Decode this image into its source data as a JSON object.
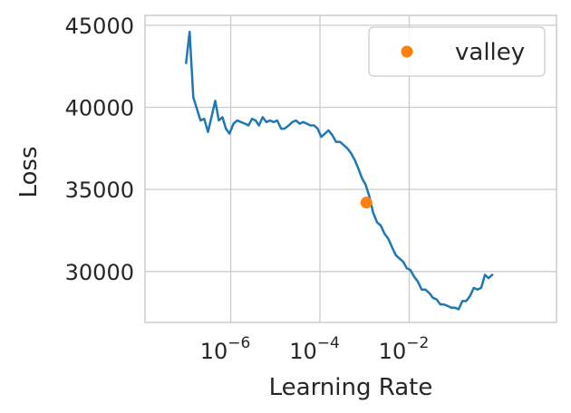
{
  "chart_data": {
    "type": "line",
    "xlabel": "Learning Rate",
    "ylabel": "Loss",
    "x_scale": "log",
    "xlim": [
      1.2e-08,
      20.0
    ],
    "ylim": [
      26900,
      45600
    ],
    "grid": true,
    "legend_position": "top-right",
    "x_ticks": [
      {
        "value": 1e-06,
        "base": "10",
        "exp": "−6"
      },
      {
        "value": 0.0001,
        "base": "10",
        "exp": "−4"
      },
      {
        "value": 0.01,
        "base": "10",
        "exp": "−2"
      }
    ],
    "y_ticks": [
      {
        "value": 30000,
        "label": "30000"
      },
      {
        "value": 35000,
        "label": "35000"
      },
      {
        "value": 40000,
        "label": "40000"
      },
      {
        "value": 45000,
        "label": "45000"
      }
    ],
    "series": [
      {
        "color": "#1f77b4",
        "points": [
          [
            1e-07,
            42700
          ],
          [
            1.2e-07,
            44600
          ],
          [
            1.45e-07,
            40600
          ],
          [
            1.75e-07,
            39900
          ],
          [
            2.1e-07,
            39200
          ],
          [
            2.55e-07,
            39300
          ],
          [
            3.1e-07,
            38500
          ],
          [
            3.7e-07,
            39400
          ],
          [
            4.5e-07,
            40400
          ],
          [
            5.4e-07,
            39200
          ],
          [
            6.5e-07,
            39400
          ],
          [
            7.8e-07,
            38700
          ],
          [
            9.4e-07,
            38400
          ],
          [
            1.15e-06,
            39000
          ],
          [
            1.4e-06,
            39200
          ],
          [
            1.7e-06,
            39100
          ],
          [
            2.1e-06,
            39000
          ],
          [
            2.5e-06,
            38900
          ],
          [
            3e-06,
            39300
          ],
          [
            3.6e-06,
            39200
          ],
          [
            4.3e-06,
            38900
          ],
          [
            5.2e-06,
            39400
          ],
          [
            6.3e-06,
            39100
          ],
          [
            7.6e-06,
            39200
          ],
          [
            9.2e-06,
            39100
          ],
          [
            1.1e-05,
            39200
          ],
          [
            1.35e-05,
            38700
          ],
          [
            1.6e-05,
            38700
          ],
          [
            2e-05,
            38900
          ],
          [
            2.4e-05,
            39100
          ],
          [
            2.9e-05,
            39200
          ],
          [
            3.5e-05,
            39000
          ],
          [
            4.2e-05,
            39100
          ],
          [
            5.1e-05,
            39000
          ],
          [
            6.1e-05,
            38900
          ],
          [
            7.4e-05,
            38900
          ],
          [
            8.9e-05,
            38700
          ],
          [
            0.000107,
            38200
          ],
          [
            0.00013,
            38400
          ],
          [
            0.000155,
            38600
          ],
          [
            0.00019,
            38300
          ],
          [
            0.00023,
            37900
          ],
          [
            0.00028,
            37900
          ],
          [
            0.00034,
            37700
          ],
          [
            0.00041,
            37500
          ],
          [
            0.0005,
            37200
          ],
          [
            0.0006,
            36800
          ],
          [
            0.00072,
            36300
          ],
          [
            0.00087,
            35700
          ],
          [
            0.00105,
            35300
          ],
          [
            0.00127,
            34600
          ],
          [
            0.00155,
            33600
          ],
          [
            0.0019,
            33000
          ],
          [
            0.0023,
            32800
          ],
          [
            0.0028,
            32300
          ],
          [
            0.0034,
            32000
          ],
          [
            0.0041,
            31500
          ],
          [
            0.005,
            31000
          ],
          [
            0.006,
            30800
          ],
          [
            0.0073,
            30600
          ],
          [
            0.0088,
            30200
          ],
          [
            0.0106,
            30100
          ],
          [
            0.0128,
            29700
          ],
          [
            0.0155,
            29400
          ],
          [
            0.019,
            28900
          ],
          [
            0.023,
            28900
          ],
          [
            0.028,
            28700
          ],
          [
            0.034,
            28400
          ],
          [
            0.041,
            28300
          ],
          [
            0.05,
            28000
          ],
          [
            0.06,
            28000
          ],
          [
            0.073,
            27900
          ],
          [
            0.088,
            27800
          ],
          [
            0.106,
            27800
          ],
          [
            0.128,
            27700
          ],
          [
            0.155,
            28200
          ],
          [
            0.19,
            28200
          ],
          [
            0.23,
            28500
          ],
          [
            0.28,
            29000
          ],
          [
            0.34,
            28900
          ],
          [
            0.41,
            29000
          ],
          [
            0.5,
            29800
          ],
          [
            0.6,
            29600
          ],
          [
            0.73,
            29800
          ]
        ]
      }
    ],
    "markers": [
      {
        "name": "valley",
        "x": 0.0011,
        "y": 34200,
        "color": "#ff7f0e"
      }
    ],
    "legend": [
      {
        "label": "valley",
        "color": "#ff7f0e"
      }
    ]
  }
}
